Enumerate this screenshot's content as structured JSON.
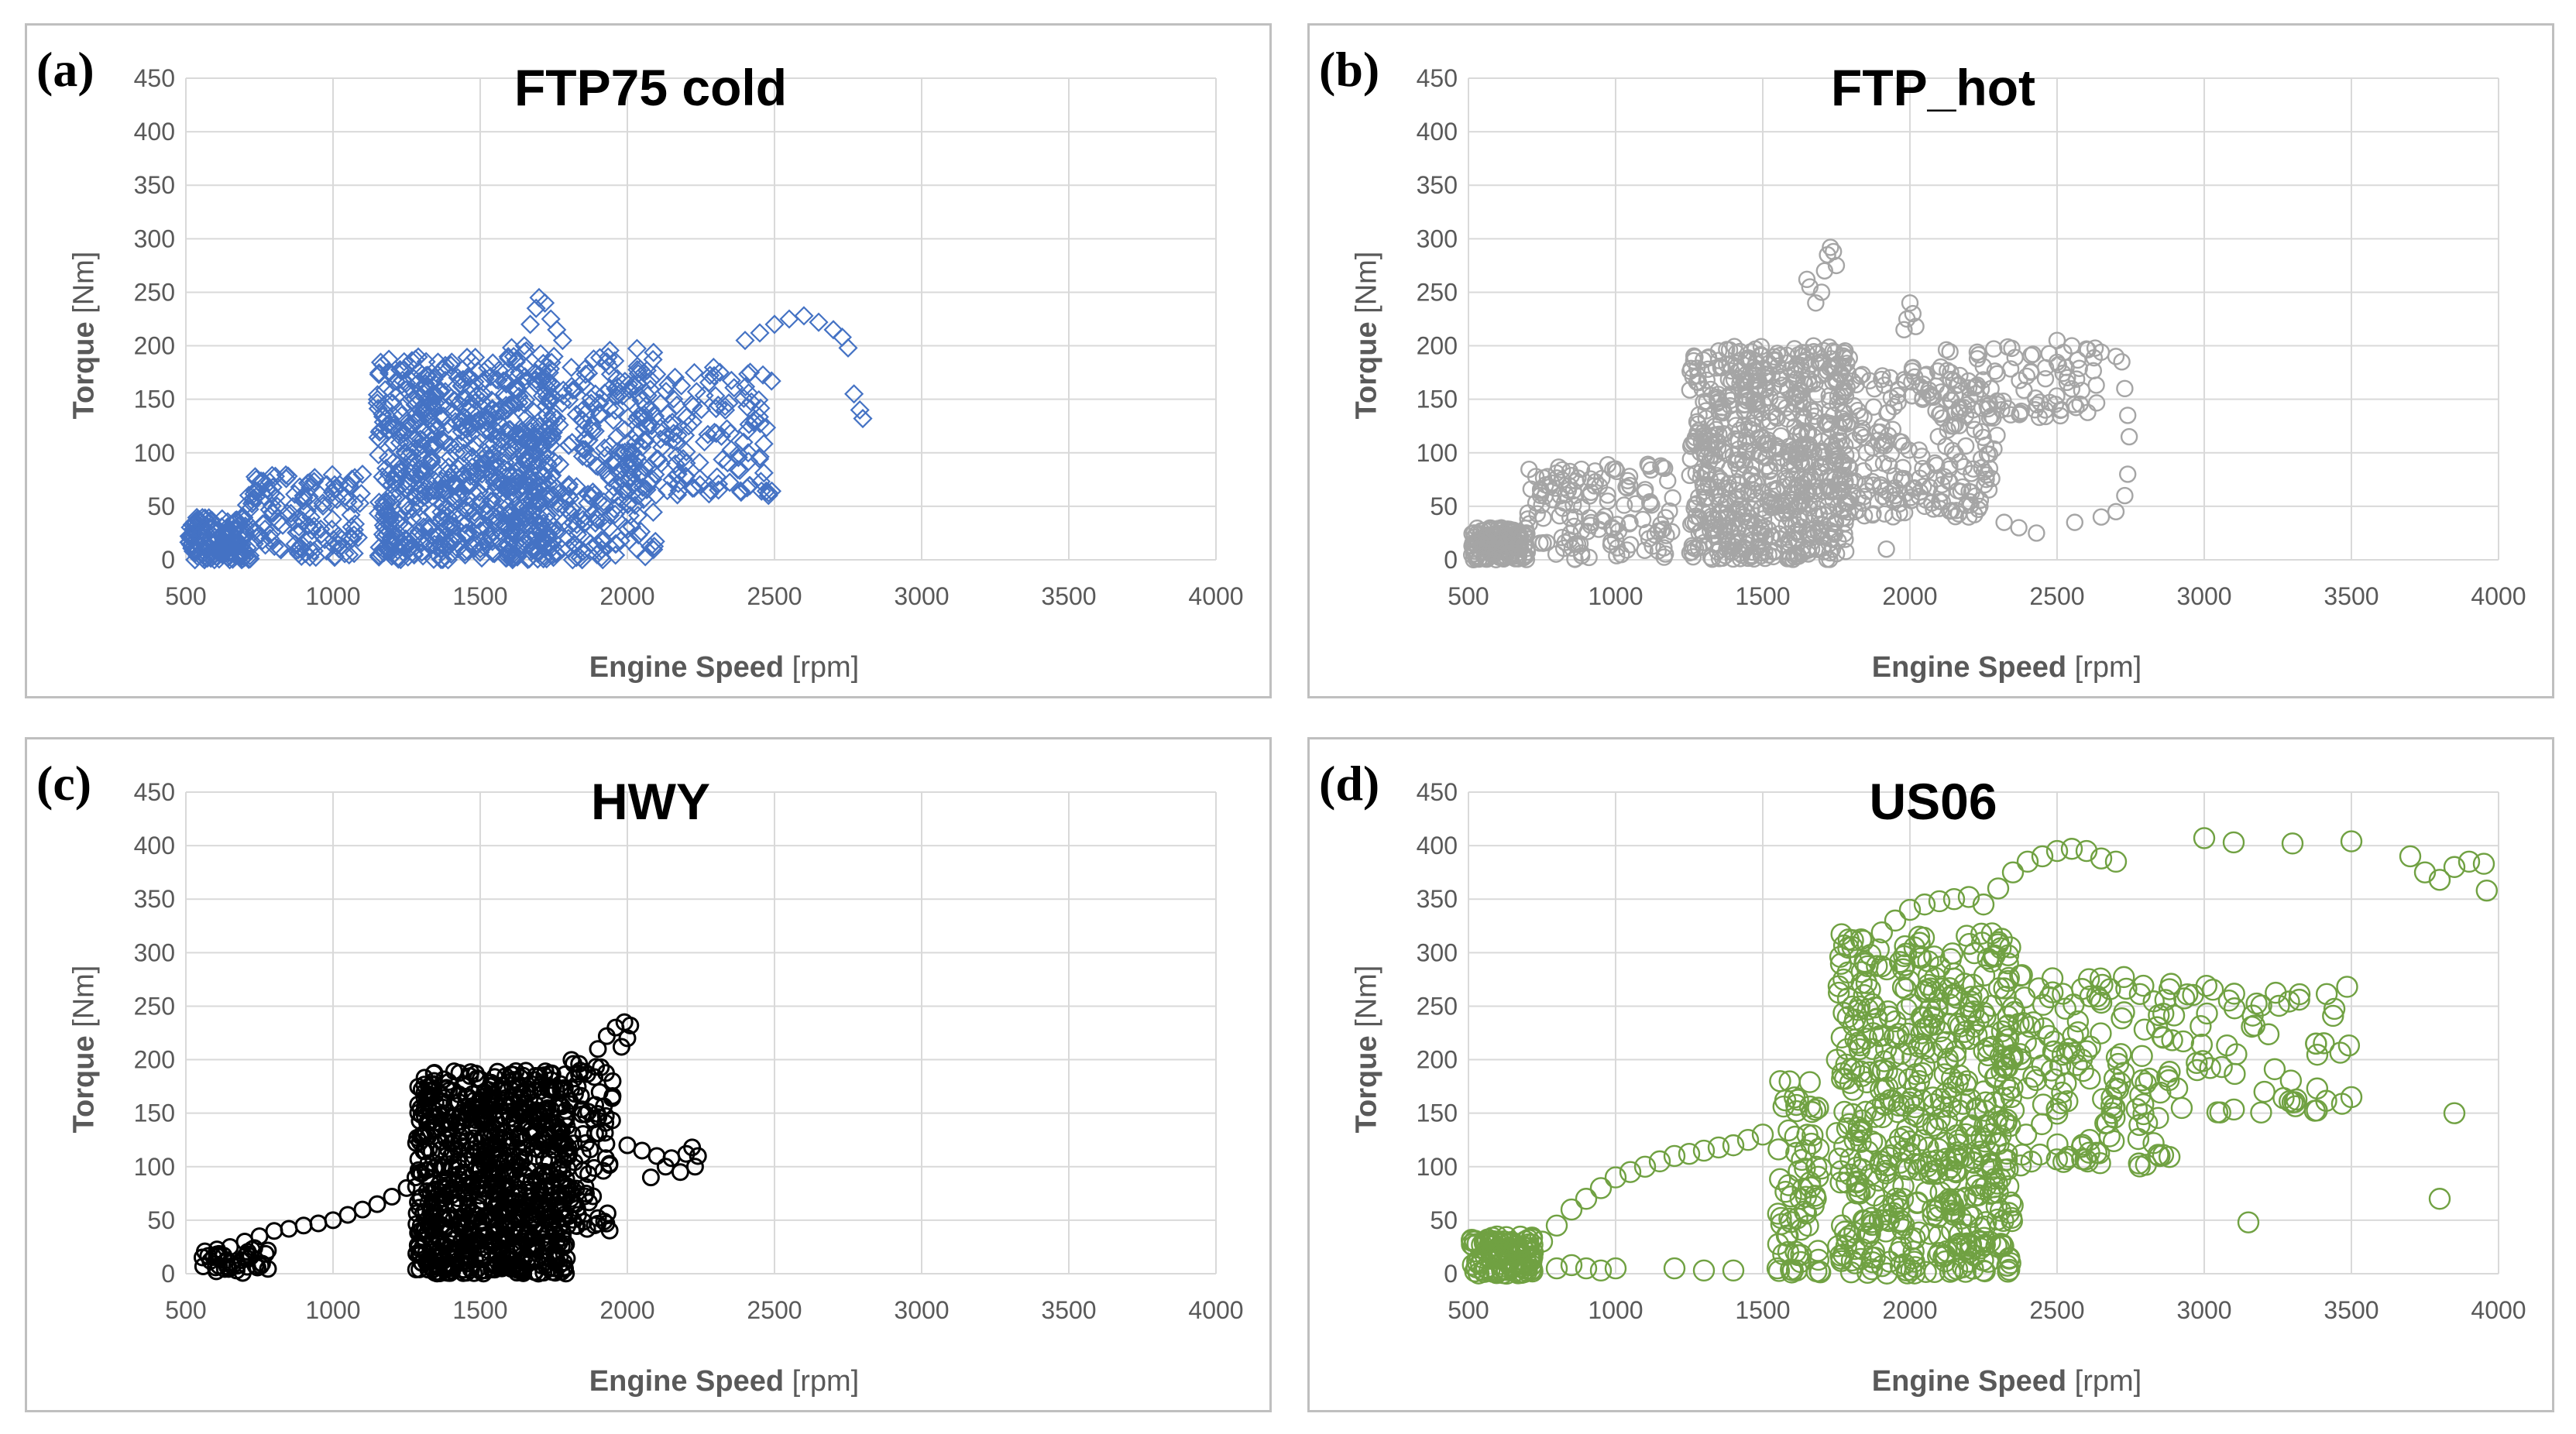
{
  "figure": {
    "panels": [
      {
        "id": "a",
        "label": "(a)",
        "marker": "diamond",
        "color": "#4472c4",
        "chart_ref": 0
      },
      {
        "id": "b",
        "label": "(b)",
        "marker": "circle",
        "color": "#a5a5a5",
        "chart_ref": 1
      },
      {
        "id": "c",
        "label": "(c)",
        "marker": "circle",
        "color": "#000000",
        "chart_ref": 2
      },
      {
        "id": "d",
        "label": "(d)",
        "marker": "circle",
        "color": "#70a142",
        "chart_ref": 3
      }
    ]
  },
  "chart_data": [
    {
      "type": "scatter",
      "title": "FTP75 cold",
      "xlabel_bold": "Engine Speed",
      "xlabel_unit": "[rpm]",
      "ylabel_bold": "Torque",
      "ylabel_unit": "[Nm]",
      "xlim": [
        500,
        4000
      ],
      "ylim": [
        0,
        450
      ],
      "xticks": [
        500,
        1000,
        1500,
        2000,
        2500,
        3000,
        3500,
        4000
      ],
      "yticks": [
        0,
        50,
        100,
        150,
        200,
        250,
        300,
        350,
        400,
        450
      ],
      "grid": true,
      "clusters": [
        {
          "x": [
            510,
            700
          ],
          "y": [
            0,
            40
          ],
          "n": 160
        },
        {
          "x": [
            700,
            1100
          ],
          "y": [
            0,
            80
          ],
          "n": 140
        },
        {
          "x": [
            1150,
            1750
          ],
          "y": [
            0,
            190
          ],
          "n": 700
        },
        {
          "x": [
            1600,
            2100
          ],
          "y": [
            0,
            200
          ],
          "n": 300
        },
        {
          "x": [
            1950,
            2500
          ],
          "y": [
            60,
            180
          ],
          "n": 160
        }
      ],
      "series_points": [
        {
          "x": [
            1650,
            1670,
            1690,
            1700,
            1720,
            1740,
            1760,
            1780
          ],
          "y": [
            200,
            220,
            235,
            245,
            240,
            225,
            215,
            205
          ]
        },
        {
          "x": [
            2400,
            2450,
            2500,
            2550,
            2600,
            2650,
            2700,
            2730,
            2750,
            2770,
            2790,
            2800
          ],
          "y": [
            205,
            212,
            220,
            225,
            228,
            222,
            215,
            208,
            198,
            155,
            140,
            132
          ]
        },
        {
          "x": [
            1800,
            1820,
            1840,
            1850,
            1600,
            1620
          ],
          "y": [
            20,
            15,
            10,
            8,
            20,
            15
          ]
        }
      ]
    },
    {
      "type": "scatter",
      "title": "FTP_hot",
      "xlabel_bold": "Engine Speed",
      "xlabel_unit": "[rpm]",
      "ylabel_bold": "Torque",
      "ylabel_unit": "[Nm]",
      "xlim": [
        500,
        4000
      ],
      "ylim": [
        0,
        450
      ],
      "xticks": [
        500,
        1000,
        1500,
        2000,
        2500,
        3000,
        3500,
        4000
      ],
      "yticks": [
        0,
        50,
        100,
        150,
        200,
        250,
        300,
        350,
        400,
        450
      ],
      "grid": true,
      "clusters": [
        {
          "x": [
            510,
            700
          ],
          "y": [
            0,
            30
          ],
          "n": 160
        },
        {
          "x": [
            700,
            1200
          ],
          "y": [
            0,
            90
          ],
          "n": 140
        },
        {
          "x": [
            1250,
            1800
          ],
          "y": [
            0,
            200
          ],
          "n": 700
        },
        {
          "x": [
            1750,
            2300
          ],
          "y": [
            40,
            180
          ],
          "n": 220
        },
        {
          "x": [
            2100,
            2650
          ],
          "y": [
            130,
            200
          ],
          "n": 90
        }
      ],
      "series_points": [
        {
          "x": [
            1700,
            1710,
            1720,
            1730,
            1740,
            1750,
            1680,
            1660,
            1650
          ],
          "y": [
            250,
            270,
            285,
            292,
            288,
            275,
            240,
            255,
            262
          ]
        },
        {
          "x": [
            2000,
            2010,
            2020,
            1980,
            1990
          ],
          "y": [
            240,
            230,
            218,
            215,
            225
          ]
        },
        {
          "x": [
            2500,
            2550,
            2600,
            2650,
            2700,
            2720,
            2730,
            2740,
            2745,
            2740,
            2730,
            2700,
            2650,
            2560,
            2430,
            2370,
            2320
          ],
          "y": [
            205,
            200,
            197,
            194,
            190,
            185,
            160,
            135,
            115,
            80,
            60,
            45,
            40,
            35,
            25,
            30,
            35
          ]
        },
        {
          "x": [
            1900,
            1950,
            2050,
            2100,
            2200,
            1920
          ],
          "y": [
            70,
            60,
            50,
            48,
            40,
            10
          ]
        }
      ]
    },
    {
      "type": "scatter",
      "title": "HWY",
      "xlabel_bold": "Engine Speed",
      "xlabel_unit": "[rpm]",
      "ylabel_bold": "Torque",
      "ylabel_unit": "[Nm]",
      "xlim": [
        500,
        4000
      ],
      "ylim": [
        0,
        450
      ],
      "xticks": [
        500,
        1000,
        1500,
        2000,
        2500,
        3000,
        3500,
        4000
      ],
      "yticks": [
        0,
        50,
        100,
        150,
        200,
        250,
        300,
        350,
        400,
        450
      ],
      "grid": true,
      "clusters": [
        {
          "x": [
            540,
            780
          ],
          "y": [
            0,
            25
          ],
          "n": 40
        },
        {
          "x": [
            1280,
            1800
          ],
          "y": [
            0,
            190
          ],
          "n": 900
        },
        {
          "x": [
            1800,
            1950
          ],
          "y": [
            40,
            200
          ],
          "n": 80
        }
      ],
      "series_points": [
        {
          "x": [
            650,
            700,
            750,
            800,
            850,
            900,
            950,
            1000,
            1050,
            1100,
            1150,
            1200,
            1250,
            1280
          ],
          "y": [
            25,
            30,
            35,
            40,
            42,
            45,
            47,
            50,
            55,
            60,
            65,
            72,
            80,
            90
          ]
        },
        {
          "x": [
            1900,
            1930,
            1960,
            1990,
            2010,
            2000,
            1980
          ],
          "y": [
            210,
            222,
            230,
            235,
            232,
            220,
            212
          ]
        },
        {
          "x": [
            2000,
            2050,
            2100,
            2150,
            2200,
            2220,
            2240,
            2230,
            2180,
            2130,
            2080
          ],
          "y": [
            120,
            115,
            110,
            108,
            112,
            118,
            110,
            100,
            95,
            100,
            90
          ]
        }
      ]
    },
    {
      "type": "scatter",
      "title": "US06",
      "xlabel_bold": "Engine Speed",
      "xlabel_unit": "[rpm]",
      "ylabel_bold": "Torque",
      "ylabel_unit": "[Nm]",
      "xlim": [
        500,
        4000
      ],
      "ylim": [
        0,
        450
      ],
      "xticks": [
        500,
        1000,
        1500,
        2000,
        2500,
        3000,
        3500,
        4000
      ],
      "yticks": [
        0,
        50,
        100,
        150,
        200,
        250,
        300,
        350,
        400,
        450
      ],
      "grid": true,
      "clusters": [
        {
          "x": [
            510,
            720
          ],
          "y": [
            0,
            35
          ],
          "n": 120
        },
        {
          "x": [
            1550,
            1700
          ],
          "y": [
            0,
            180
          ],
          "n": 70
        },
        {
          "x": [
            1750,
            2350
          ],
          "y": [
            0,
            320
          ],
          "n": 550
        },
        {
          "x": [
            2300,
            2900
          ],
          "y": [
            100,
            280
          ],
          "n": 160
        },
        {
          "x": [
            2900,
            3500
          ],
          "y": [
            150,
            270
          ],
          "n": 60
        }
      ],
      "series_points": [
        {
          "x": [
            750,
            800,
            850,
            900,
            950,
            1000,
            1050,
            1100,
            1150,
            1200,
            1250,
            1300,
            1350,
            1400,
            1450,
            1500
          ],
          "y": [
            30,
            45,
            60,
            70,
            80,
            90,
            95,
            100,
            105,
            110,
            112,
            115,
            118,
            120,
            125,
            130
          ]
        },
        {
          "x": [
            1950,
            2000,
            2050,
            2100,
            2150,
            2200,
            2250
          ],
          "y": [
            330,
            340,
            345,
            348,
            350,
            352,
            345
          ]
        },
        {
          "x": [
            2300,
            2350,
            2400,
            2450,
            2500,
            2550,
            2600,
            2650,
            2700
          ],
          "y": [
            360,
            375,
            385,
            390,
            395,
            397,
            395,
            388,
            385
          ]
        },
        {
          "x": [
            3000,
            3100,
            3300,
            3500,
            3700,
            3750,
            3800,
            3850,
            3900,
            3950,
            3960
          ],
          "y": [
            407,
            403,
            402,
            404,
            390,
            375,
            368,
            380,
            385,
            383,
            358
          ]
        },
        {
          "x": [
            3850,
            3800,
            3500,
            3300,
            3150
          ],
          "y": [
            150,
            70,
            165,
            160,
            48
          ]
        },
        {
          "x": [
            800,
            850,
            900,
            950,
            1000,
            1200,
            1300,
            1400,
            1550
          ],
          "y": [
            5,
            8,
            5,
            3,
            5,
            5,
            3,
            3,
            5
          ]
        }
      ]
    }
  ]
}
